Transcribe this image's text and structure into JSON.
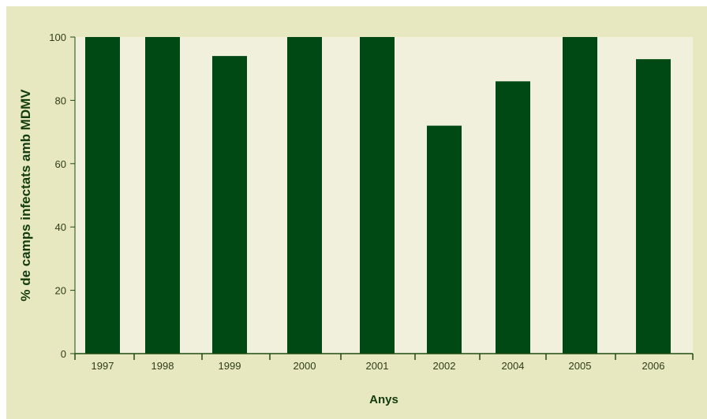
{
  "chart_data": {
    "type": "bar",
    "xlabel": "Anys",
    "ylabel": "% de camps infectats amb MDMV",
    "categories": [
      "1997",
      "1998",
      "1999",
      "2000",
      "2001",
      "2002",
      "2004",
      "2005",
      "2006"
    ],
    "values": [
      100,
      100,
      94,
      100,
      100,
      72,
      86,
      100,
      93
    ],
    "ylim": [
      0,
      100
    ],
    "yticks": [
      0,
      20,
      40,
      60,
      80,
      100
    ],
    "grid": false,
    "colors": {
      "background": "#e7e8bf",
      "plot_background": "#f0f0dc",
      "bar": "#004814",
      "axis": "#1f4a12",
      "text": "#2f3d1a"
    }
  }
}
